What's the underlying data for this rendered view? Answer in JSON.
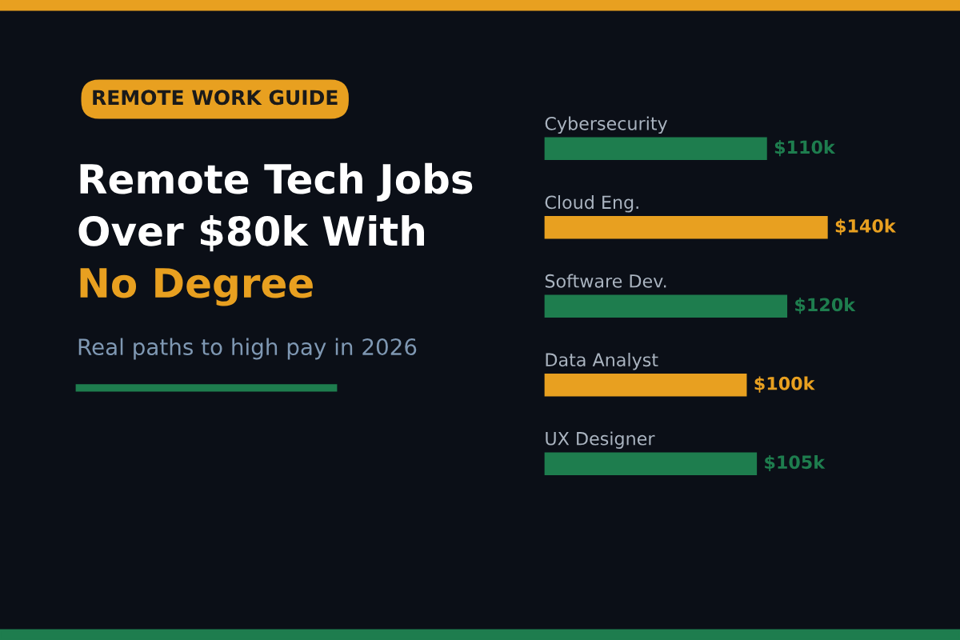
{
  "chart_data": {
    "type": "bar",
    "orientation": "horizontal",
    "title": "Remote Tech Jobs\nOver $80k With\nNo Degree",
    "subtitle": "Real paths to high pay in 2026",
    "annotations": [
      "REMOTE WORK GUIDE"
    ],
    "categories": [
      "Cybersecurity",
      "Cloud Eng.",
      "Software Dev.",
      "Data Analyst",
      "UX Designer"
    ],
    "values": [
      110,
      140,
      120,
      100,
      105
    ],
    "colors": [
      "#1e7d4e",
      "#e8a020",
      "#1e7d4e",
      "#e8a020",
      "#1e7d4e"
    ],
    "value_labels": [
      "$110k",
      "$140k",
      "$120k",
      "$100k",
      "$105k"
    ]
  }
}
